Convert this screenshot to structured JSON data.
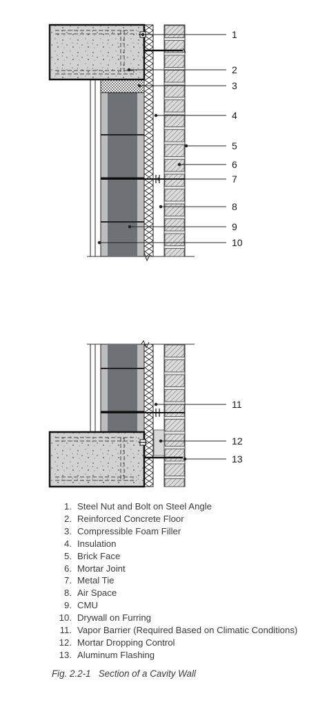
{
  "callouts": [
    "1",
    "2",
    "3",
    "4",
    "5",
    "6",
    "7",
    "8",
    "9",
    "10",
    "11",
    "12",
    "13"
  ],
  "legend": [
    {
      "num": "1.",
      "text": "Steel Nut and Bolt on Steel Angle"
    },
    {
      "num": "2.",
      "text": "Reinforced Concrete Floor"
    },
    {
      "num": "3.",
      "text": "Compressible Foam Filler"
    },
    {
      "num": "4.",
      "text": "Insulation"
    },
    {
      "num": "5.",
      "text": "Brick Face"
    },
    {
      "num": "6.",
      "text": "Mortar Joint"
    },
    {
      "num": "7.",
      "text": "Metal Tie"
    },
    {
      "num": "8.",
      "text": "Air Space"
    },
    {
      "num": "9.",
      "text": "CMU"
    },
    {
      "num": "10.",
      "text": "Drywall on Furring"
    },
    {
      "num": "11.",
      "text": "Vapor Barrier (Required Based on Climatic Conditions)"
    },
    {
      "num": "12.",
      "text": "Mortar Dropping Control"
    },
    {
      "num": "13.",
      "text": "Aluminum Flashing"
    }
  ],
  "caption": {
    "label": "Fig. 2.2-1",
    "title": "Section of a Cavity Wall"
  },
  "colors": {
    "concrete": "#cfcfcf",
    "cmu": "#6e7176",
    "cmu_shell": "#bdbdbd",
    "brick": "#d8d8d8",
    "brick_hatch": "#8a8a8a",
    "insulation": "#ffffff",
    "line": "#1a1a1a"
  }
}
